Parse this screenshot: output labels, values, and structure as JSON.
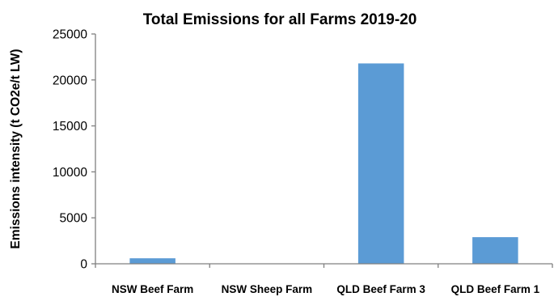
{
  "chart_data": {
    "type": "bar",
    "title": "Total Emissions for all Farms 2019-20",
    "xlabel": "",
    "ylabel": "Emissions intensity (t CO2e/t LW)",
    "categories": [
      "NSW Beef Farm",
      "NSW Sheep Farm",
      "QLD Beef Farm 3",
      "QLD Beef Farm 1"
    ],
    "values": [
      600,
      0,
      21800,
      2900
    ],
    "ylim": [
      0,
      25000
    ],
    "yticks": [
      "0",
      "5000",
      "10000",
      "15000",
      "20000",
      "25000"
    ],
    "grid": false,
    "legend": "none",
    "bar_color": "#5b9bd5",
    "axis_color": "#808080"
  }
}
